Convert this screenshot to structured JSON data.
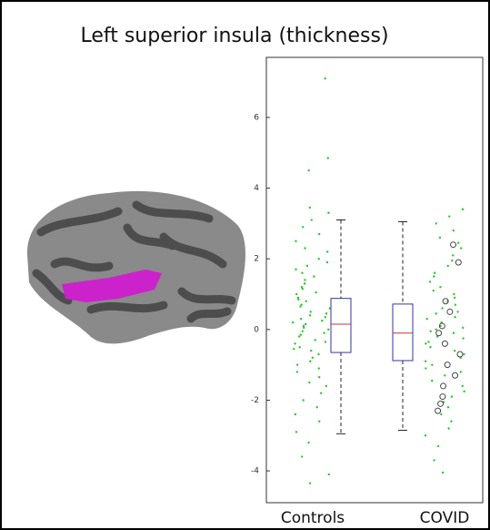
{
  "chart_data": {
    "type": "box",
    "title": "Left superior insula (thickness)",
    "categories": [
      "Controls",
      "COVID"
    ],
    "ylim": [
      -4.9,
      7.7
    ],
    "yticks": [
      -4,
      -2,
      0,
      2,
      4,
      6
    ],
    "boxes": [
      {
        "low": -2.95,
        "q1": -0.65,
        "median": 0.15,
        "q3": 0.88,
        "high": 3.1
      },
      {
        "low": -2.85,
        "q1": -0.88,
        "median": -0.1,
        "q3": 0.72,
        "high": 3.05
      }
    ],
    "points": [
      [
        7.1,
        4.85,
        4.5,
        3.45,
        3.3,
        3.1,
        2.9,
        2.7,
        2.5,
        2.3,
        2.2,
        2.0,
        1.9,
        1.8,
        1.7,
        1.6,
        1.5,
        1.4,
        1.3,
        1.2,
        1.15,
        1.05,
        1.0,
        0.9,
        0.85,
        0.8,
        0.7,
        0.65,
        0.6,
        0.5,
        0.45,
        0.4,
        0.35,
        0.3,
        0.25,
        0.2,
        0.15,
        0.1,
        0.05,
        0.0,
        -0.05,
        -0.1,
        -0.15,
        -0.2,
        -0.3,
        -0.35,
        -0.4,
        -0.5,
        -0.55,
        -0.6,
        -0.7,
        -0.8,
        -0.9,
        -1.0,
        -1.1,
        -1.2,
        -1.35,
        -1.5,
        -1.6,
        -1.8,
        -2.0,
        -2.2,
        -2.4,
        -2.6,
        -2.9,
        -3.2,
        -3.6,
        -4.1,
        -4.35
      ],
      [
        3.4,
        3.2,
        3.0,
        2.8,
        2.6,
        2.45,
        2.3,
        2.1,
        1.95,
        1.8,
        1.6,
        1.5,
        1.35,
        1.2,
        1.1,
        1.0,
        0.9,
        0.8,
        0.7,
        0.6,
        0.5,
        0.45,
        0.35,
        0.3,
        0.2,
        0.1,
        0.05,
        0.0,
        -0.05,
        -0.1,
        -0.2,
        -0.25,
        -0.35,
        -0.4,
        -0.5,
        -0.6,
        -0.7,
        -0.8,
        -0.9,
        -1.0,
        -1.1,
        -1.2,
        -1.3,
        -1.45,
        -1.6,
        -1.75,
        -1.9,
        -2.05,
        -2.2,
        -2.4,
        -2.6,
        -2.8,
        -3.0,
        -3.3,
        -3.7,
        -4.05
      ]
    ],
    "highlighted": [
      [],
      [
        2.4,
        1.9,
        0.8,
        0.5,
        0.1,
        -0.1,
        -0.4,
        -0.7,
        -1.0,
        -1.3,
        -1.6,
        -1.9,
        -2.1,
        -2.3
      ]
    ],
    "point_color": "#22cc22",
    "box_color": "#3333aa",
    "median_color": "#cc3333"
  }
}
